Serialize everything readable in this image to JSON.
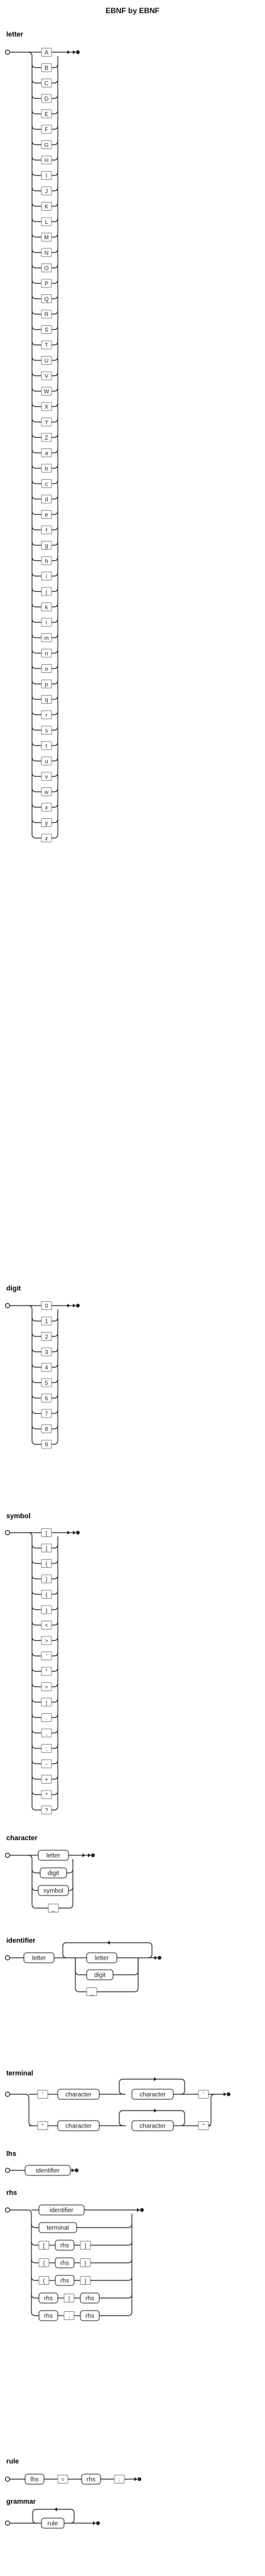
{
  "title": "EBNF by EBNF",
  "rules": [
    {
      "name": "letter",
      "kind": "alternatives",
      "items": [
        {
          "label": "A",
          "type": "terminal"
        },
        {
          "label": "B",
          "type": "terminal"
        },
        {
          "label": "C",
          "type": "terminal"
        },
        {
          "label": "D",
          "type": "terminal"
        },
        {
          "label": "E",
          "type": "terminal"
        },
        {
          "label": "F",
          "type": "terminal"
        },
        {
          "label": "G",
          "type": "terminal"
        },
        {
          "label": "H",
          "type": "terminal"
        },
        {
          "label": "I",
          "type": "terminal"
        },
        {
          "label": "J",
          "type": "terminal"
        },
        {
          "label": "K",
          "type": "terminal"
        },
        {
          "label": "L",
          "type": "terminal"
        },
        {
          "label": "M",
          "type": "terminal"
        },
        {
          "label": "N",
          "type": "terminal"
        },
        {
          "label": "O",
          "type": "terminal"
        },
        {
          "label": "P",
          "type": "terminal"
        },
        {
          "label": "Q",
          "type": "terminal"
        },
        {
          "label": "R",
          "type": "terminal"
        },
        {
          "label": "S",
          "type": "terminal"
        },
        {
          "label": "T",
          "type": "terminal"
        },
        {
          "label": "U",
          "type": "terminal"
        },
        {
          "label": "V",
          "type": "terminal"
        },
        {
          "label": "W",
          "type": "terminal"
        },
        {
          "label": "X",
          "type": "terminal"
        },
        {
          "label": "Y",
          "type": "terminal"
        },
        {
          "label": "Z",
          "type": "terminal"
        },
        {
          "label": "a",
          "type": "terminal"
        },
        {
          "label": "b",
          "type": "terminal"
        },
        {
          "label": "c",
          "type": "terminal"
        },
        {
          "label": "d",
          "type": "terminal"
        },
        {
          "label": "e",
          "type": "terminal"
        },
        {
          "label": "f",
          "type": "terminal"
        },
        {
          "label": "g",
          "type": "terminal"
        },
        {
          "label": "h",
          "type": "terminal"
        },
        {
          "label": "i",
          "type": "terminal"
        },
        {
          "label": "j",
          "type": "terminal"
        },
        {
          "label": "k",
          "type": "terminal"
        },
        {
          "label": "l",
          "type": "terminal"
        },
        {
          "label": "m",
          "type": "terminal"
        },
        {
          "label": "n",
          "type": "terminal"
        },
        {
          "label": "o",
          "type": "terminal"
        },
        {
          "label": "p",
          "type": "terminal"
        },
        {
          "label": "q",
          "type": "terminal"
        },
        {
          "label": "r",
          "type": "terminal"
        },
        {
          "label": "s",
          "type": "terminal"
        },
        {
          "label": "t",
          "type": "terminal"
        },
        {
          "label": "u",
          "type": "terminal"
        },
        {
          "label": "v",
          "type": "terminal"
        },
        {
          "label": "w",
          "type": "terminal"
        },
        {
          "label": "x",
          "type": "terminal"
        },
        {
          "label": "y",
          "type": "terminal"
        },
        {
          "label": "z",
          "type": "terminal"
        }
      ]
    },
    {
      "name": "digit",
      "kind": "alternatives",
      "items": [
        {
          "label": "0",
          "type": "terminal"
        },
        {
          "label": "1",
          "type": "terminal"
        },
        {
          "label": "2",
          "type": "terminal"
        },
        {
          "label": "3",
          "type": "terminal"
        },
        {
          "label": "4",
          "type": "terminal"
        },
        {
          "label": "5",
          "type": "terminal"
        },
        {
          "label": "6",
          "type": "terminal"
        },
        {
          "label": "7",
          "type": "terminal"
        },
        {
          "label": "8",
          "type": "terminal"
        },
        {
          "label": "9",
          "type": "terminal"
        }
      ]
    },
    {
      "name": "symbol",
      "kind": "alternatives",
      "items": [
        {
          "label": "[",
          "type": "terminal"
        },
        {
          "label": "]",
          "type": "terminal"
        },
        {
          "label": "{",
          "type": "terminal"
        },
        {
          "label": "}",
          "type": "terminal"
        },
        {
          "label": "(",
          "type": "terminal"
        },
        {
          "label": ")",
          "type": "terminal"
        },
        {
          "label": "<",
          "type": "terminal"
        },
        {
          "label": ">",
          "type": "terminal"
        },
        {
          "label": "'",
          "type": "terminal"
        },
        {
          "label": "\"",
          "type": "terminal"
        },
        {
          "label": "=",
          "type": "terminal"
        },
        {
          "label": "|",
          "type": "terminal"
        },
        {
          "label": ".",
          "type": "terminal"
        },
        {
          "label": ",",
          "type": "terminal"
        },
        {
          "label": ";",
          "type": "terminal"
        },
        {
          "label": "-",
          "type": "terminal"
        },
        {
          "label": "+",
          "type": "terminal"
        },
        {
          "label": "*",
          "type": "terminal"
        },
        {
          "label": "?",
          "type": "terminal"
        }
      ]
    },
    {
      "name": "character",
      "kind": "alternatives",
      "items": [
        {
          "label": "letter",
          "type": "nonterminal"
        },
        {
          "label": "digit",
          "type": "nonterminal"
        },
        {
          "label": "symbol",
          "type": "nonterminal"
        },
        {
          "label": "_",
          "type": "terminal"
        }
      ]
    },
    {
      "name": "identifier",
      "kind": "sequence",
      "first": {
        "label": "letter",
        "type": "nonterminal"
      },
      "repeat": [
        {
          "label": "letter",
          "type": "nonterminal"
        },
        {
          "label": "digit",
          "type": "nonterminal"
        },
        {
          "label": "_",
          "type": "terminal"
        }
      ]
    },
    {
      "name": "terminal",
      "kind": "quoted",
      "branches": [
        {
          "open": "'",
          "body": "character",
          "close": "'"
        },
        {
          "open": "\"",
          "body": "character",
          "close": "\""
        }
      ]
    },
    {
      "name": "lhs",
      "kind": "single",
      "item": {
        "label": "identifier",
        "type": "nonterminal"
      }
    },
    {
      "name": "rhs",
      "kind": "rows",
      "rows": [
        [
          {
            "label": "identifier",
            "type": "nonterminal"
          }
        ],
        [
          {
            "label": "terminal",
            "type": "nonterminal"
          }
        ],
        [
          {
            "label": "[",
            "type": "terminal"
          },
          {
            "label": "rhs",
            "type": "nonterminal"
          },
          {
            "label": "]",
            "type": "terminal"
          }
        ],
        [
          {
            "label": "{",
            "type": "terminal"
          },
          {
            "label": "rhs",
            "type": "nonterminal"
          },
          {
            "label": "}",
            "type": "terminal"
          }
        ],
        [
          {
            "label": "(",
            "type": "terminal"
          },
          {
            "label": "rhs",
            "type": "nonterminal"
          },
          {
            "label": ")",
            "type": "terminal"
          }
        ],
        [
          {
            "label": "rhs",
            "type": "nonterminal"
          },
          {
            "label": "|",
            "type": "terminal"
          },
          {
            "label": "rhs",
            "type": "nonterminal"
          }
        ],
        [
          {
            "label": "rhs",
            "type": "nonterminal"
          },
          {
            "label": ",",
            "type": "terminal"
          },
          {
            "label": "rhs",
            "type": "nonterminal"
          }
        ]
      ]
    },
    {
      "name": "rule",
      "kind": "sequence-only",
      "seq": [
        {
          "label": "lhs",
          "type": "nonterminal"
        },
        {
          "label": "=",
          "type": "terminal"
        },
        {
          "label": "rhs",
          "type": "nonterminal"
        },
        {
          "label": ";",
          "type": "terminal"
        }
      ]
    },
    {
      "name": "grammar",
      "kind": "loop",
      "item": {
        "label": "rule",
        "type": "nonterminal"
      }
    }
  ]
}
